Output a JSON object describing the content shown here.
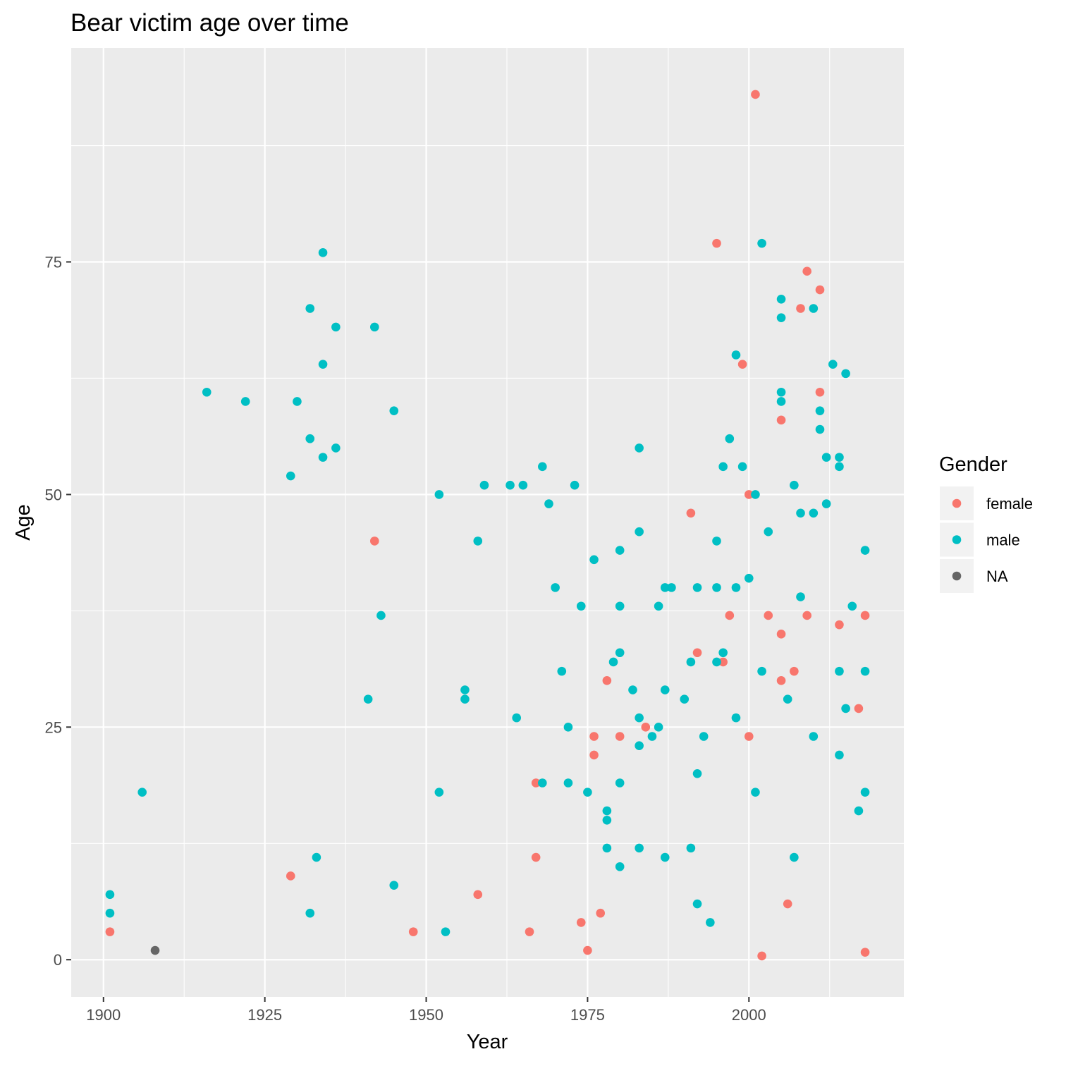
{
  "chart_data": {
    "type": "scatter",
    "title": "Bear victim age over time",
    "xlabel": "Year",
    "ylabel": "Age",
    "xlim": [
      1895,
      2024
    ],
    "ylim": [
      -4,
      98
    ],
    "xticks": [
      1900,
      1925,
      1950,
      1975,
      2000
    ],
    "yticks": [
      0,
      25,
      50,
      75
    ],
    "grid": true,
    "legend": {
      "title": "Gender",
      "placement": "right"
    },
    "series": [
      {
        "name": "female",
        "color": "#F8766D",
        "points": [
          [
            1901,
            3
          ],
          [
            1929,
            9
          ],
          [
            1942,
            45
          ],
          [
            1948,
            3
          ],
          [
            1958,
            7
          ],
          [
            1966,
            3
          ],
          [
            1967,
            19
          ],
          [
            1967,
            11
          ],
          [
            1974,
            4
          ],
          [
            1975,
            1
          ],
          [
            1976,
            24
          ],
          [
            1976,
            22
          ],
          [
            1977,
            5
          ],
          [
            1978,
            30
          ],
          [
            1980,
            24
          ],
          [
            1984,
            25
          ],
          [
            1991,
            48
          ],
          [
            1992,
            33
          ],
          [
            1995,
            77
          ],
          [
            1996,
            32
          ],
          [
            1997,
            37
          ],
          [
            1999,
            64
          ],
          [
            2000,
            50
          ],
          [
            2000,
            24
          ],
          [
            2001,
            93
          ],
          [
            2002,
            0.4
          ],
          [
            2003,
            37
          ],
          [
            2005,
            58
          ],
          [
            2005,
            35
          ],
          [
            2005,
            30
          ],
          [
            2006,
            6
          ],
          [
            2007,
            31
          ],
          [
            2008,
            70
          ],
          [
            2009,
            74
          ],
          [
            2009,
            37
          ],
          [
            2011,
            72
          ],
          [
            2011,
            61
          ],
          [
            2014,
            36
          ],
          [
            2017,
            27
          ],
          [
            2018,
            37
          ],
          [
            2018,
            0.8
          ]
        ]
      },
      {
        "name": "male",
        "color": "#00BFC4",
        "points": [
          [
            1901,
            7
          ],
          [
            1901,
            5
          ],
          [
            1906,
            18
          ],
          [
            1916,
            61
          ],
          [
            1922,
            60
          ],
          [
            1929,
            52
          ],
          [
            1930,
            60
          ],
          [
            1932,
            70
          ],
          [
            1932,
            56
          ],
          [
            1932,
            5
          ],
          [
            1933,
            11
          ],
          [
            1934,
            76
          ],
          [
            1934,
            64
          ],
          [
            1934,
            54
          ],
          [
            1936,
            68
          ],
          [
            1936,
            55
          ],
          [
            1941,
            28
          ],
          [
            1942,
            68
          ],
          [
            1943,
            37
          ],
          [
            1945,
            59
          ],
          [
            1945,
            8
          ],
          [
            1952,
            50
          ],
          [
            1952,
            18
          ],
          [
            1953,
            3
          ],
          [
            1956,
            29
          ],
          [
            1956,
            28
          ],
          [
            1958,
            45
          ],
          [
            1959,
            51
          ],
          [
            1963,
            51
          ],
          [
            1964,
            26
          ],
          [
            1965,
            51
          ],
          [
            1968,
            53
          ],
          [
            1968,
            19
          ],
          [
            1969,
            49
          ],
          [
            1970,
            40
          ],
          [
            1971,
            31
          ],
          [
            1972,
            25
          ],
          [
            1972,
            19
          ],
          [
            1973,
            51
          ],
          [
            1974,
            38
          ],
          [
            1975,
            18
          ],
          [
            1976,
            43
          ],
          [
            1978,
            16
          ],
          [
            1978,
            15
          ],
          [
            1978,
            12
          ],
          [
            1979,
            32
          ],
          [
            1980,
            44
          ],
          [
            1980,
            38
          ],
          [
            1980,
            33
          ],
          [
            1980,
            19
          ],
          [
            1980,
            10
          ],
          [
            1982,
            29
          ],
          [
            1983,
            55
          ],
          [
            1983,
            46
          ],
          [
            1983,
            26
          ],
          [
            1983,
            23
          ],
          [
            1983,
            12
          ],
          [
            1985,
            24
          ],
          [
            1986,
            38
          ],
          [
            1986,
            25
          ],
          [
            1987,
            40
          ],
          [
            1987,
            29
          ],
          [
            1987,
            11
          ],
          [
            1988,
            40
          ],
          [
            1990,
            28
          ],
          [
            1991,
            32
          ],
          [
            1991,
            12
          ],
          [
            1992,
            40
          ],
          [
            1992,
            20
          ],
          [
            1992,
            6
          ],
          [
            1993,
            24
          ],
          [
            1994,
            4
          ],
          [
            1995,
            45
          ],
          [
            1995,
            40
          ],
          [
            1995,
            32
          ],
          [
            1996,
            53
          ],
          [
            1996,
            33
          ],
          [
            1997,
            56
          ],
          [
            1998,
            65
          ],
          [
            1998,
            40
          ],
          [
            1998,
            26
          ],
          [
            1999,
            53
          ],
          [
            2000,
            41
          ],
          [
            2001,
            50
          ],
          [
            2001,
            18
          ],
          [
            2002,
            77
          ],
          [
            2002,
            31
          ],
          [
            2003,
            46
          ],
          [
            2005,
            71
          ],
          [
            2005,
            69
          ],
          [
            2005,
            61
          ],
          [
            2005,
            60
          ],
          [
            2006,
            28
          ],
          [
            2007,
            51
          ],
          [
            2007,
            11
          ],
          [
            2008,
            48
          ],
          [
            2008,
            39
          ],
          [
            2010,
            70
          ],
          [
            2010,
            48
          ],
          [
            2010,
            24
          ],
          [
            2011,
            59
          ],
          [
            2011,
            57
          ],
          [
            2012,
            54
          ],
          [
            2012,
            49
          ],
          [
            2013,
            64
          ],
          [
            2014,
            54
          ],
          [
            2014,
            53
          ],
          [
            2014,
            31
          ],
          [
            2014,
            22
          ],
          [
            2015,
            63
          ],
          [
            2015,
            27
          ],
          [
            2016,
            38
          ],
          [
            2017,
            16
          ],
          [
            2018,
            44
          ],
          [
            2018,
            31
          ],
          [
            2018,
            18
          ]
        ]
      },
      {
        "name": "NA",
        "color": "#666666",
        "points": [
          [
            1908,
            1
          ]
        ]
      }
    ]
  }
}
